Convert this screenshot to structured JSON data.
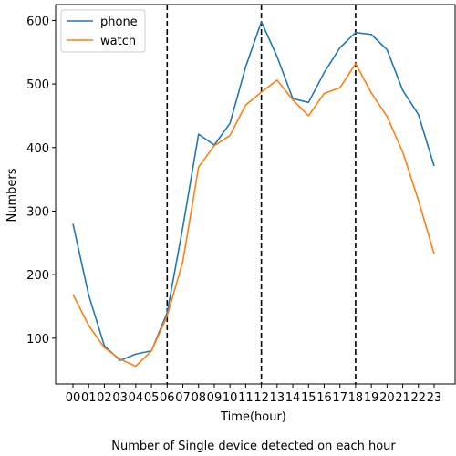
{
  "chart_data": {
    "type": "line",
    "title": "",
    "xlabel": "Time(hour)",
    "ylabel": "Numbers",
    "caption": "Number of Single device detected on each hour",
    "x": [
      "00",
      "01",
      "02",
      "03",
      "04",
      "05",
      "06",
      "07",
      "08",
      "09",
      "10",
      "11",
      "12",
      "13",
      "14",
      "15",
      "16",
      "17",
      "18",
      "19",
      "20",
      "21",
      "22",
      "23"
    ],
    "ylim": [
      28,
      625
    ],
    "yticks": [
      100,
      200,
      300,
      400,
      500,
      600
    ],
    "grid": false,
    "legend_position": "upper-left",
    "vlines": {
      "positions": [
        "06",
        "12",
        "18"
      ],
      "style": "dashed",
      "color": "#000000"
    },
    "series": [
      {
        "name": "phone",
        "color": "#1f77b4",
        "values": [
          280,
          168,
          88,
          65,
          75,
          80,
          140,
          275,
          421,
          404,
          438,
          527,
          598,
          543,
          477,
          471,
          518,
          557,
          581,
          578,
          554,
          490,
          452,
          371
        ]
      },
      {
        "name": "watch",
        "color": "#ff7f0e",
        "values": [
          169,
          120,
          85,
          67,
          56,
          80,
          135,
          221,
          369,
          403,
          419,
          467,
          487,
          506,
          475,
          450,
          485,
          494,
          532,
          486,
          449,
          393,
          317,
          233
        ]
      }
    ]
  }
}
